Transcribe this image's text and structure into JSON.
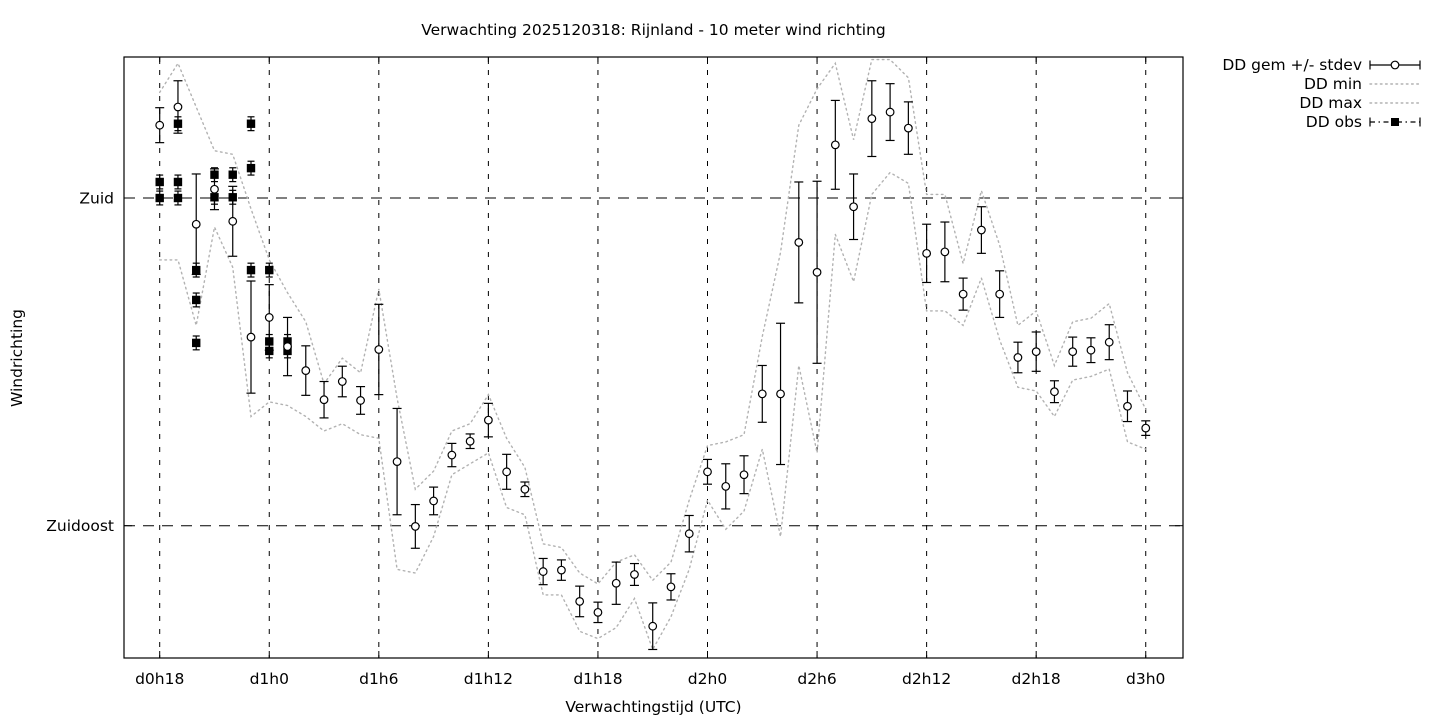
{
  "title": "Verwachting 2025120318: Rijnland - 10 meter wind richting",
  "x_axis": {
    "label": "Verwachtingstijd (UTC)",
    "ticks": [
      {
        "hour": 0,
        "label": "d0h18"
      },
      {
        "hour": 6,
        "label": "d1h0"
      },
      {
        "hour": 12,
        "label": "d1h6"
      },
      {
        "hour": 18,
        "label": "d1h12"
      },
      {
        "hour": 24,
        "label": "d1h18"
      },
      {
        "hour": 30,
        "label": "d2h0"
      },
      {
        "hour": 36,
        "label": "d2h6"
      },
      {
        "hour": 42,
        "label": "d2h12"
      },
      {
        "hour": 48,
        "label": "d2h18"
      },
      {
        "hour": 54,
        "label": "d3h0"
      }
    ]
  },
  "y_axis": {
    "label": "Windrichting",
    "ticks": [
      {
        "deg": 180,
        "label": "Zuid"
      },
      {
        "deg": 135,
        "label": "Zuidoost"
      }
    ]
  },
  "legend": [
    {
      "label": "DD gem +/- stdev",
      "style": "errorbar"
    },
    {
      "label": "DD min",
      "style": "dotted"
    },
    {
      "label": "DD max",
      "style": "dotted"
    },
    {
      "label": "DD obs",
      "style": "obs"
    }
  ],
  "colors": {
    "foreground": "#000000",
    "grid": "#000000",
    "minmax_dotted": "#b2b2b2",
    "background": "#ffffff"
  },
  "chart_data": {
    "type": "line",
    "x_unit": "hours after d0h18 (1 point per hour)",
    "y_unit": "wind direction, degrees (Zuid=180, Zuidoost=135)",
    "xlim_hours": [
      -1.96,
      56.04
    ],
    "ylim_deg": [
      116.8,
      199.4
    ],
    "hours_start": 0,
    "hours_end": 54,
    "series": [
      {
        "name": "DD gem +/- stdev",
        "style": "errorbar-circle",
        "mean": [
          190.0,
          192.5,
          176.4,
          181.2,
          176.8,
          160.9,
          163.6,
          159.6,
          156.3,
          152.3,
          154.8,
          152.2,
          159.2,
          143.8,
          134.9,
          138.4,
          144.7,
          146.6,
          149.5,
          142.4,
          140.0,
          128.7,
          128.9,
          124.6,
          123.1,
          127.1,
          128.3,
          121.2,
          126.6,
          133.9,
          142.4,
          140.4,
          142.0,
          153.1,
          153.1,
          173.9,
          169.8,
          187.3,
          178.8,
          190.9,
          191.8,
          189.6,
          172.4,
          172.6,
          166.8,
          175.6,
          166.8,
          158.1,
          158.9,
          153.4,
          158.9,
          159.1,
          160.2,
          151.4,
          148.4
        ],
        "stdev": [
          2.4,
          3.6,
          6.9,
          2.8,
          4.8,
          7.7,
          4.5,
          4.0,
          3.4,
          2.5,
          2.1,
          1.9,
          6.2,
          7.3,
          3.0,
          1.9,
          1.6,
          1.0,
          2.3,
          2.4,
          1.0,
          1.8,
          1.4,
          2.1,
          1.4,
          2.9,
          1.5,
          3.2,
          1.8,
          2.5,
          1.7,
          3.1,
          2.6,
          3.9,
          9.7,
          8.3,
          12.5,
          6.1,
          4.5,
          5.2,
          3.9,
          3.6,
          4.0,
          4.1,
          2.2,
          3.2,
          3.2,
          2.1,
          2.7,
          1.5,
          2.0,
          1.7,
          2.4,
          2.1,
          1.0
        ]
      },
      {
        "name": "DD min",
        "style": "dotted",
        "values": [
          171.5,
          171.5,
          162.5,
          176.0,
          170.5,
          150.0,
          152.0,
          151.5,
          150.0,
          148.0,
          149.0,
          147.5,
          147.0,
          129.0,
          128.5,
          133.5,
          142.0,
          143.5,
          145.0,
          137.5,
          136.5,
          125.5,
          125.5,
          120.5,
          119.5,
          121.0,
          125.0,
          118.0,
          122.5,
          129.0,
          138.5,
          134.5,
          137.0,
          145.5,
          133.5,
          157.0,
          145.0,
          175.0,
          168.5,
          180.5,
          183.5,
          182.0,
          164.5,
          164.5,
          162.5,
          169.0,
          160.5,
          154.0,
          153.5,
          150.0,
          155.0,
          155.5,
          156.5,
          146.5,
          145.5
        ]
      },
      {
        "name": "DD max",
        "style": "dotted",
        "values": [
          194.5,
          198.5,
          192.5,
          186.5,
          186.0,
          178.5,
          171.5,
          167.0,
          163.0,
          154.5,
          158.0,
          156.0,
          167.5,
          152.5,
          140.0,
          142.5,
          148.0,
          149.0,
          153.0,
          147.0,
          143.0,
          132.5,
          132.0,
          128.5,
          127.0,
          130.0,
          131.0,
          127.5,
          130.0,
          138.5,
          146.0,
          146.5,
          147.5,
          161.0,
          172.5,
          190.0,
          195.0,
          198.5,
          188.0,
          199.0,
          199.0,
          196.5,
          180.5,
          180.5,
          171.0,
          181.0,
          173.5,
          162.5,
          164.5,
          157.0,
          163.0,
          163.5,
          165.5,
          156.0,
          151.0
        ]
      },
      {
        "name": "DD obs",
        "style": "filled-square-errorbar",
        "err_deg": 0.95,
        "points": [
          [
            0,
            182.2
          ],
          [
            0,
            180.0
          ],
          [
            1,
            190.2
          ],
          [
            1,
            182.2
          ],
          [
            1,
            180.0
          ],
          [
            2,
            170.1
          ],
          [
            2,
            166.0
          ],
          [
            2,
            160.1
          ],
          [
            3,
            183.2
          ],
          [
            3,
            180.1
          ],
          [
            4,
            183.2
          ],
          [
            4,
            180.1
          ],
          [
            5,
            190.2
          ],
          [
            5,
            184.1
          ],
          [
            5,
            170.1
          ],
          [
            6,
            170.1
          ],
          [
            6,
            160.3
          ],
          [
            6,
            159.0
          ],
          [
            7,
            160.3
          ],
          [
            7,
            159.0
          ]
        ]
      }
    ]
  }
}
